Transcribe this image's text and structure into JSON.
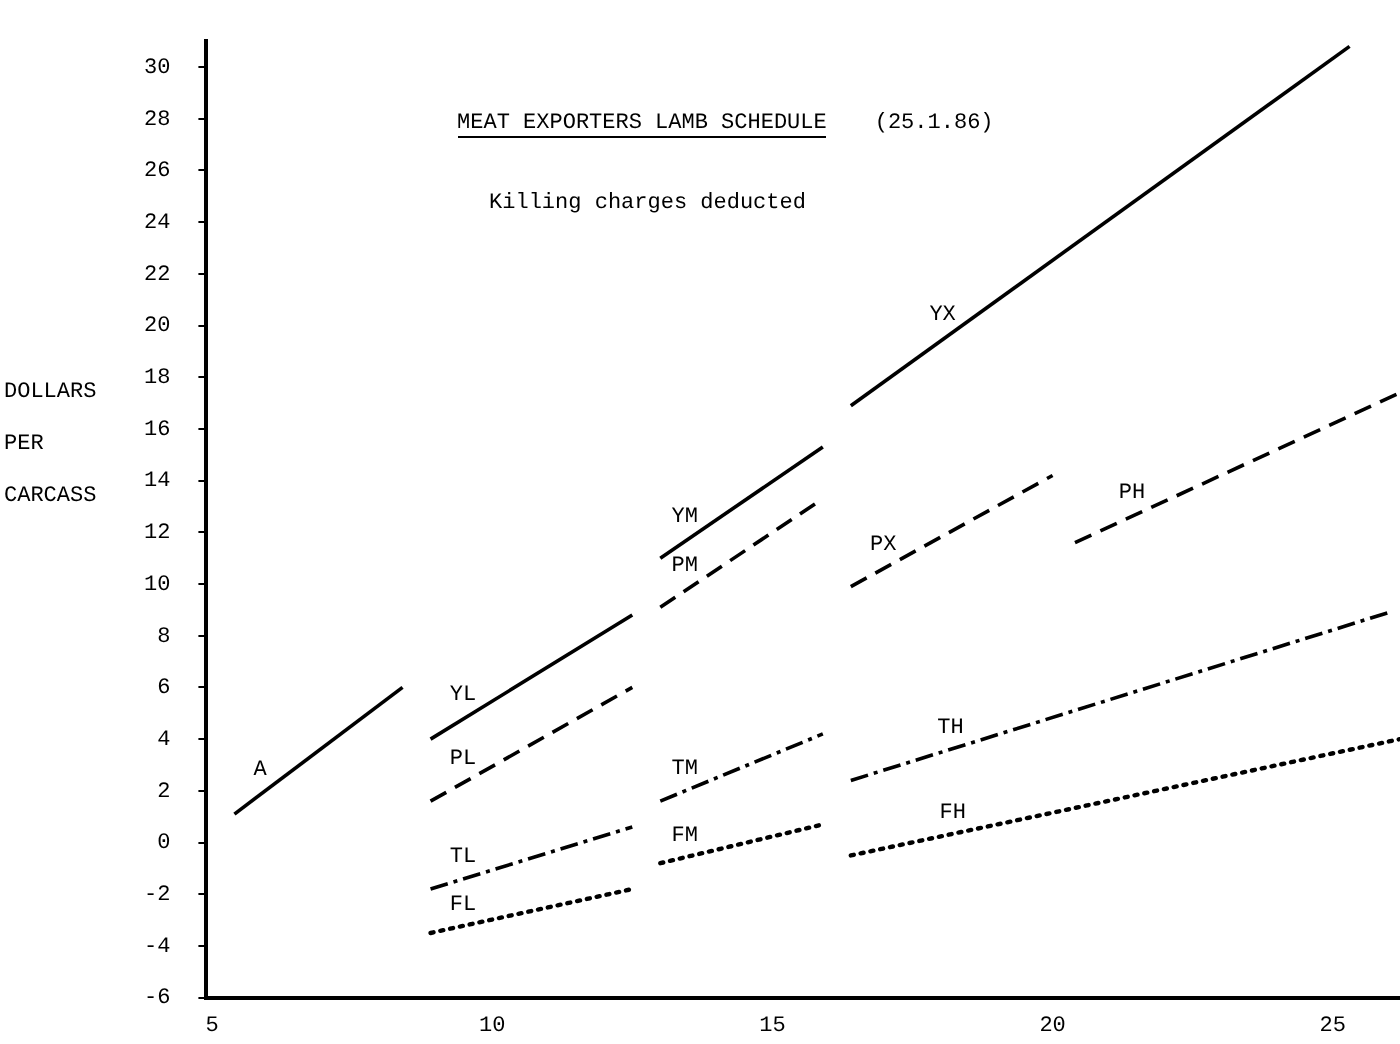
{
  "chart_data": {
    "type": "line",
    "title": "MEAT EXPORTERS LAMB SCHEDULE",
    "subtitle": "Killing charges deducted",
    "ylabel": "DOLLARS PER CARCASS",
    "annotations": [
      "(25.1.86)"
    ],
    "xlim": [
      4.9,
      26.2
    ],
    "xticks": [
      5,
      10,
      15,
      20,
      25
    ],
    "ylim": [
      -6,
      31
    ],
    "yticks": [
      -6,
      -4,
      -2,
      0,
      2,
      4,
      6,
      8,
      10,
      12,
      14,
      16,
      18,
      20,
      22,
      24,
      26,
      28,
      30
    ],
    "grid": false,
    "legend": false,
    "marker": "none",
    "series": [
      {
        "name": "A",
        "color": "#000000",
        "line_style": "solid",
        "x": [
          5.4,
          8.4
        ],
        "values": [
          1.1,
          6.0
        ]
      },
      {
        "name": "YL",
        "color": "#000000",
        "line_style": "solid",
        "x": [
          8.9,
          12.5
        ],
        "values": [
          4.0,
          8.8
        ]
      },
      {
        "name": "PL",
        "color": "#000000",
        "line_style": "dashed",
        "x": [
          8.9,
          12.5
        ],
        "values": [
          1.6,
          6.0
        ]
      },
      {
        "name": "TL",
        "color": "#000000",
        "line_style": "dashdot",
        "x": [
          8.9,
          12.5
        ],
        "values": [
          -1.8,
          0.6
        ]
      },
      {
        "name": "FL",
        "color": "#000000",
        "line_style": "dotted",
        "x": [
          8.9,
          12.5
        ],
        "values": [
          -3.5,
          -1.8
        ]
      },
      {
        "name": "YM",
        "color": "#000000",
        "line_style": "solid",
        "x": [
          13.0,
          15.9
        ],
        "values": [
          11.0,
          15.3
        ]
      },
      {
        "name": "PM",
        "color": "#000000",
        "line_style": "dashed",
        "x": [
          13.0,
          15.9
        ],
        "values": [
          9.1,
          13.3
        ]
      },
      {
        "name": "TM",
        "color": "#000000",
        "line_style": "dashdot",
        "x": [
          13.0,
          15.9
        ],
        "values": [
          1.6,
          4.2
        ]
      },
      {
        "name": "FM",
        "color": "#000000",
        "line_style": "dotted",
        "x": [
          13.0,
          15.9
        ],
        "values": [
          -0.8,
          0.7
        ]
      },
      {
        "name": "YX",
        "color": "#000000",
        "line_style": "solid",
        "x": [
          16.4,
          25.3
        ],
        "values": [
          16.9,
          30.8
        ]
      },
      {
        "name": "PX",
        "color": "#000000",
        "line_style": "dashed",
        "x": [
          16.4,
          20.0
        ],
        "values": [
          9.9,
          14.2
        ]
      },
      {
        "name": "PH",
        "color": "#000000",
        "line_style": "dashed",
        "x": [
          20.4,
          26.2
        ],
        "values": [
          11.6,
          17.4
        ]
      },
      {
        "name": "TH",
        "color": "#000000",
        "line_style": "dashdot",
        "x": [
          16.4,
          26.0
        ],
        "values": [
          2.4,
          8.9
        ]
      },
      {
        "name": "FH",
        "color": "#000000",
        "line_style": "dotted",
        "x": [
          16.4,
          26.2
        ],
        "values": [
          -0.5,
          4.0
        ]
      }
    ]
  }
}
